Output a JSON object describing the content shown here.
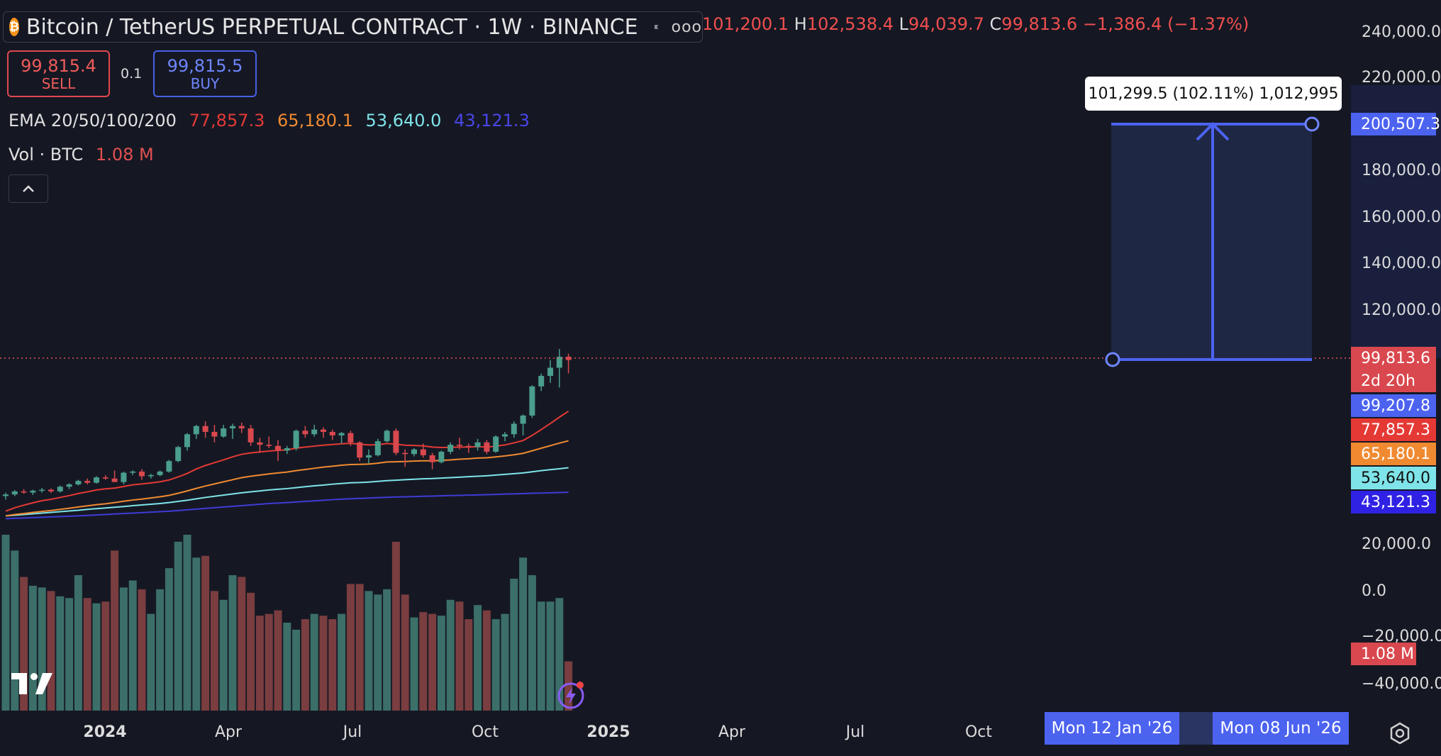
{
  "header": {
    "coin_glyph": "₿",
    "symbol_title": "Bitcoin / TetherUS PERPETUAL CONTRACT · 1W · BINANCE",
    "flag_icon": "flag-icon",
    "more_glyph": "ooo"
  },
  "ohlc": {
    "open_value": "101,200.1",
    "high_label": "H",
    "high_value": "102,538.4",
    "low_label": "L",
    "low_value": "94,039.7",
    "close_label": "C",
    "close_value": "99,813.6",
    "change": "−1,386.4 (−1.37%)"
  },
  "trade": {
    "sell_price": "99,815.4",
    "sell_label": "SELL",
    "quantity": "0.1",
    "buy_price": "99,815.5",
    "buy_label": "BUY"
  },
  "legend": {
    "ema_label": "EMA 20/50/100/200",
    "ema_values": [
      "77,857.3",
      "65,180.1",
      "53,640.0",
      "43,121.3"
    ],
    "vol_label": "Vol · BTC",
    "vol_value": "1.08 M"
  },
  "measure_tooltip": "101,299.5 (102.11%) 1,012,995",
  "y_axis_ticks": [
    "240,000.0",
    "220,000.0",
    "180,000.0",
    "160,000.0",
    "140,000.0",
    "120,000.0",
    "20,000.0",
    "0.0",
    "−20,000.0",
    "−40,000.0"
  ],
  "price_tags": {
    "target": "200,507.3",
    "last_price": "99,813.6",
    "countdown": "2d 20h",
    "mark": "99,207.8",
    "ema20": "77,857.3",
    "ema50": "65,180.1",
    "ema100": "53,640.0",
    "ema200": "43,121.3",
    "volume": "1.08 M"
  },
  "x_axis_labels": [
    "2024",
    "Apr",
    "Jul",
    "Oct",
    "2025",
    "Apr",
    "Jul",
    "Oct"
  ],
  "time_chips": [
    "Mon 12 Jan '26",
    "Mon 08 Jun '26"
  ],
  "colors": {
    "background": "#151823",
    "up": "#4a9e8b",
    "down": "#d9484e",
    "ema20": "#e53935",
    "ema50": "#f08a31",
    "ema100": "#7fe4e9",
    "ema200": "#3f3bd6",
    "accent": "#4c63f0"
  },
  "chart_data": {
    "type": "candlestick",
    "interval": "1W",
    "y_axis": "price (USDT)",
    "measure": {
      "from_price": 99207.8,
      "to_price": 200507.3,
      "change": 101299.5,
      "change_pct": 102.11,
      "from_date": "2026-01-12",
      "to_date": "2026-06-08"
    },
    "candles_ohlc": [
      [
        41500,
        43000,
        40000,
        42200
      ],
      [
        42200,
        44000,
        41500,
        43500
      ],
      [
        43500,
        44500,
        42500,
        43000
      ],
      [
        43000,
        44200,
        42000,
        43800
      ],
      [
        43800,
        45000,
        43000,
        44200
      ],
      [
        44200,
        44800,
        42800,
        43500
      ],
      [
        43500,
        46000,
        43000,
        45500
      ],
      [
        45500,
        47000,
        44500,
        46500
      ],
      [
        46500,
        48500,
        46000,
        48000
      ],
      [
        48000,
        49000,
        46500,
        47200
      ],
      [
        47200,
        50000,
        46800,
        49500
      ],
      [
        49500,
        50500,
        48500,
        49000
      ],
      [
        49000,
        52500,
        48000,
        47500
      ],
      [
        47500,
        52000,
        46500,
        51500
      ],
      [
        51500,
        52500,
        50500,
        52000
      ],
      [
        52000,
        53000,
        48500,
        50000
      ],
      [
        50000,
        51000,
        49000,
        50500
      ],
      [
        50500,
        52500,
        50000,
        52000
      ],
      [
        52000,
        57000,
        51500,
        56500
      ],
      [
        56500,
        63000,
        56000,
        62500
      ],
      [
        62500,
        68500,
        61000,
        68000
      ],
      [
        68000,
        72000,
        66000,
        71500
      ],
      [
        71500,
        73500,
        66500,
        69000
      ],
      [
        69000,
        72000,
        64500,
        67000
      ],
      [
        67000,
        72000,
        66500,
        70500
      ],
      [
        70500,
        72500,
        66000,
        71500
      ],
      [
        71500,
        73000,
        68500,
        70500
      ],
      [
        70500,
        72000,
        63000,
        64500
      ],
      [
        64500,
        66500,
        60000,
        63500
      ],
      [
        63500,
        67000,
        62000,
        63000
      ],
      [
        63000,
        65500,
        56500,
        61000
      ],
      [
        61000,
        63000,
        59500,
        62000
      ],
      [
        62000,
        70000,
        61000,
        69500
      ],
      [
        69500,
        71500,
        66500,
        68000
      ],
      [
        68000,
        72000,
        67000,
        70000
      ],
      [
        70000,
        71000,
        66500,
        69000
      ],
      [
        69000,
        70000,
        65500,
        67500
      ],
      [
        67500,
        69000,
        64000,
        68500
      ],
      [
        68500,
        69500,
        63000,
        64500
      ],
      [
        64500,
        65000,
        56500,
        58000
      ],
      [
        58000,
        61500,
        55500,
        59000
      ],
      [
        59000,
        66000,
        58500,
        65000
      ],
      [
        65000,
        70000,
        64500,
        69500
      ],
      [
        69500,
        70500,
        59000,
        60000
      ],
      [
        60000,
        61500,
        54000,
        59500
      ],
      [
        59500,
        62000,
        58500,
        61500
      ],
      [
        61500,
        64000,
        58000,
        59000
      ],
      [
        59000,
        60000,
        53000,
        56000
      ],
      [
        56000,
        61000,
        55500,
        60500
      ],
      [
        60500,
        64500,
        59500,
        63500
      ],
      [
        63500,
        66500,
        61500,
        63000
      ],
      [
        63000,
        64000,
        60000,
        62500
      ],
      [
        62500,
        66000,
        61000,
        64500
      ],
      [
        64500,
        65500,
        59500,
        60500
      ],
      [
        60500,
        67500,
        60000,
        67000
      ],
      [
        67000,
        69000,
        65000,
        68000
      ],
      [
        68000,
        73500,
        66500,
        72500
      ],
      [
        72500,
        76500,
        67500,
        76000
      ],
      [
        76000,
        89000,
        75000,
        88500
      ],
      [
        88500,
        94000,
        86500,
        93000
      ],
      [
        93000,
        99800,
        90000,
        96500
      ],
      [
        96500,
        104500,
        88000,
        101200
      ],
      [
        101200,
        102538.4,
        94039.7,
        99813.6
      ]
    ],
    "ema_series_end": {
      "EMA20": 77857.3,
      "EMA50": 65180.1,
      "EMA100": 53640.0,
      "EMA200": 43121.3
    },
    "ema20": [
      35000,
      36500,
      37600,
      38600,
      39500,
      40100,
      40900,
      41700,
      42600,
      43300,
      44100,
      44600,
      44900,
      45600,
      46300,
      46700,
      47100,
      47600,
      48400,
      49700,
      51200,
      53100,
      54600,
      55800,
      57000,
      58300,
      59400,
      60000,
      60400,
      60800,
      61100,
      61300,
      62000,
      62500,
      62900,
      63300,
      63600,
      63900,
      64100,
      63700,
      63400,
      63500,
      64000,
      63700,
      63300,
      63200,
      63000,
      62500,
      62300,
      62400,
      62500,
      62500,
      62700,
      62500,
      62900,
      63400,
      64300,
      65300,
      67500,
      70000,
      72600,
      75300,
      77857.3
    ],
    "ema50": [
      33000,
      33600,
      34000,
      34500,
      34900,
      35300,
      35800,
      36300,
      36800,
      37300,
      37800,
      38200,
      38700,
      39300,
      39800,
      40200,
      40700,
      41200,
      41800,
      42700,
      43700,
      44800,
      45800,
      46700,
      47600,
      48500,
      49400,
      50000,
      50500,
      51000,
      51400,
      51800,
      52400,
      52900,
      53400,
      53900,
      54300,
      54700,
      55000,
      55100,
      55200,
      55600,
      56100,
      56200,
      56300,
      56500,
      56600,
      56600,
      56800,
      57000,
      57300,
      57500,
      57800,
      57900,
      58300,
      58700,
      59200,
      59800,
      60900,
      62000,
      63100,
      64200,
      65180.1
    ],
    "ema100": [
      33000,
      33300,
      33600,
      33900,
      34200,
      34500,
      34800,
      35100,
      35400,
      35800,
      36100,
      36400,
      36700,
      37000,
      37400,
      37700,
      38000,
      38300,
      38700,
      39200,
      39700,
      40300,
      40900,
      41400,
      41900,
      42400,
      42900,
      43300,
      43700,
      44100,
      44400,
      44700,
      45100,
      45500,
      45900,
      46200,
      46600,
      46900,
      47200,
      47300,
      47500,
      47800,
      48100,
      48300,
      48500,
      48700,
      48900,
      49000,
      49200,
      49400,
      49600,
      49800,
      50000,
      50200,
      50500,
      50800,
      51100,
      51400,
      51900,
      52400,
      52800,
      53200,
      53640.0
    ],
    "ema200": [
      31800,
      31950,
      32100,
      32250,
      32400,
      32550,
      32700,
      32850,
      33000,
      33200,
      33400,
      33600,
      33800,
      34000,
      34200,
      34400,
      34600,
      34800,
      35000,
      35300,
      35600,
      35900,
      36200,
      36500,
      36800,
      37100,
      37400,
      37700,
      38000,
      38300,
      38500,
      38700,
      38950,
      39200,
      39450,
      39700,
      39950,
      40150,
      40350,
      40500,
      40650,
      40800,
      40950,
      41100,
      41200,
      41300,
      41400,
      41500,
      41600,
      41700,
      41800,
      41900,
      42000,
      42100,
      42200,
      42350,
      42450,
      42550,
      42700,
      42800,
      42900,
      43000,
      43121.3
    ],
    "volume_relative": [
      1.0,
      0.91,
      0.76,
      0.71,
      0.7,
      0.68,
      0.65,
      0.64,
      0.77,
      0.64,
      0.61,
      0.62,
      0.91,
      0.7,
      0.74,
      0.69,
      0.55,
      0.69,
      0.81,
      0.96,
      1.0,
      0.87,
      0.88,
      0.68,
      0.63,
      0.77,
      0.76,
      0.67,
      0.54,
      0.55,
      0.57,
      0.5,
      0.46,
      0.52,
      0.55,
      0.54,
      0.52,
      0.55,
      0.72,
      0.72,
      0.68,
      0.66,
      0.69,
      0.96,
      0.66,
      0.53,
      0.56,
      0.55,
      0.54,
      0.63,
      0.62,
      0.52,
      0.6,
      0.57,
      0.52,
      0.55,
      0.75,
      0.87,
      0.77,
      0.62,
      0.62,
      0.64,
      0.28
    ],
    "x_axis_labels": [
      "2024",
      "Apr",
      "Jul",
      "Oct",
      "2025",
      "Apr",
      "Jul",
      "Oct"
    ]
  }
}
